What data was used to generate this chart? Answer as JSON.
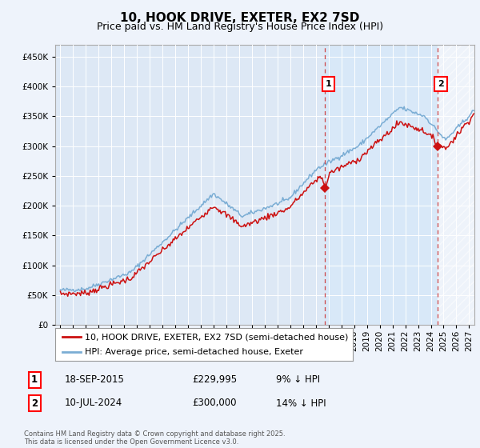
{
  "title": "10, HOOK DRIVE, EXETER, EX2 7SD",
  "subtitle": "Price paid vs. HM Land Registry's House Price Index (HPI)",
  "ytick_values": [
    0,
    50000,
    100000,
    150000,
    200000,
    250000,
    300000,
    350000,
    400000,
    450000
  ],
  "ylim": [
    0,
    470000
  ],
  "xlim_start": 1994.6,
  "xlim_end": 2027.4,
  "hpi_color": "#7aadd4",
  "price_color": "#cc1111",
  "dashed_color": "#cc3333",
  "bg_color": "#eef3fb",
  "plot_bg": "#dde8f5",
  "shade1_color": "#d8e8f8",
  "shade2_hatch": "///",
  "grid_color": "#ffffff",
  "legend_label_red": "10, HOOK DRIVE, EXETER, EX2 7SD (semi-detached house)",
  "legend_label_blue": "HPI: Average price, semi-detached house, Exeter",
  "marker1_x": 2015.72,
  "marker1_y": 229995,
  "marker1_label": "1",
  "marker1_date": "18-SEP-2015",
  "marker1_price": "£229,995",
  "marker1_hpi": "9% ↓ HPI",
  "marker2_x": 2024.53,
  "marker2_y": 300000,
  "marker2_label": "2",
  "marker2_date": "10-JUL-2024",
  "marker2_price": "£300,000",
  "marker2_hpi": "14% ↓ HPI",
  "footer": "Contains HM Land Registry data © Crown copyright and database right 2025.\nThis data is licensed under the Open Government Licence v3.0.",
  "title_fontsize": 11,
  "subtitle_fontsize": 9,
  "tick_fontsize": 7.5,
  "legend_fontsize": 8,
  "footer_fontsize": 6,
  "table_fontsize": 8.5
}
